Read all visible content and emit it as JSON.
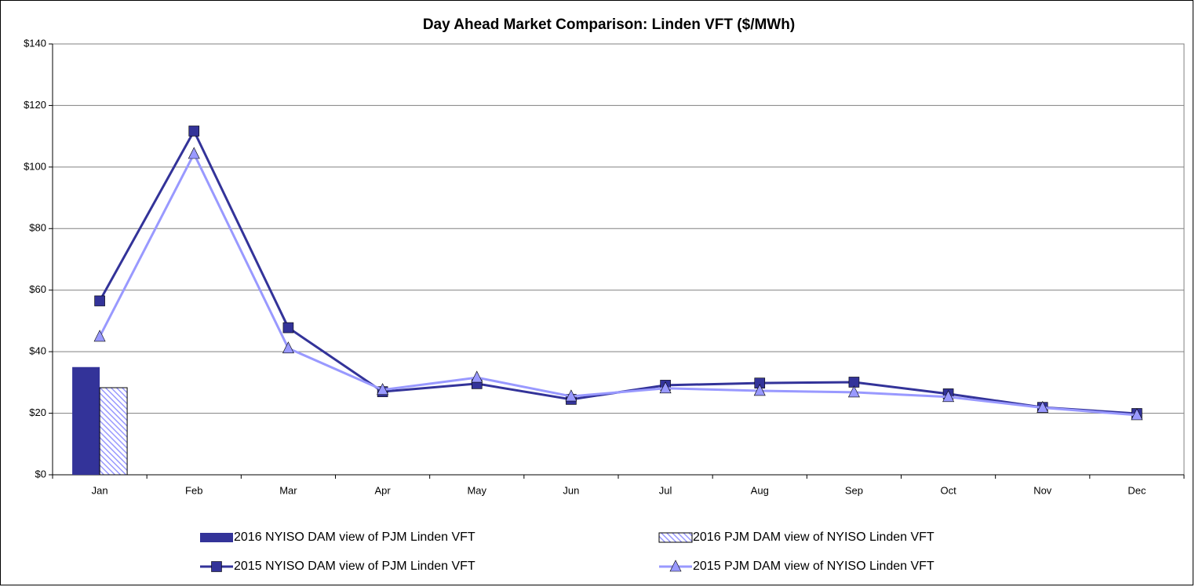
{
  "chart_data": {
    "type": "combo",
    "title": "Day Ahead Market Comparison: Linden VFT ($/MWh)",
    "categories": [
      "Jan",
      "Feb",
      "Mar",
      "Apr",
      "May",
      "Jun",
      "Jul",
      "Aug",
      "Sep",
      "Oct",
      "Nov",
      "Dec"
    ],
    "ylim": [
      0,
      140
    ],
    "yticks": [
      {
        "value": 0,
        "label": "$0"
      },
      {
        "value": 20,
        "label": "$20"
      },
      {
        "value": 40,
        "label": "$40"
      },
      {
        "value": 60,
        "label": "$60"
      },
      {
        "value": 80,
        "label": "$80"
      },
      {
        "value": 100,
        "label": "$100"
      },
      {
        "value": 120,
        "label": "$120"
      },
      {
        "value": 140,
        "label": "$140"
      }
    ],
    "grid": true,
    "series": [
      {
        "name": "2016 NYISO DAM view of PJM Linden VFT",
        "type": "bar",
        "color": "#333399",
        "hatch": false,
        "values": [
          35,
          null,
          null,
          null,
          null,
          null,
          null,
          null,
          null,
          null,
          null,
          null
        ]
      },
      {
        "name": "2016 PJM DAM view of NYISO Linden VFT",
        "type": "bar",
        "color": "#9999ff",
        "hatch": true,
        "values": [
          28.3,
          null,
          null,
          null,
          null,
          null,
          null,
          null,
          null,
          null,
          null,
          null
        ]
      },
      {
        "name": "2015 NYISO DAM view of PJM Linden VFT",
        "type": "line",
        "color": "#333399",
        "marker": "square",
        "values": [
          56.5,
          111.7,
          47.8,
          27,
          29.6,
          24.5,
          29.1,
          29.8,
          30.1,
          26.3,
          21.9,
          19.9
        ]
      },
      {
        "name": "2015 PJM DAM view of NYISO Linden VFT",
        "type": "line",
        "color": "#9999ff",
        "marker": "triangle",
        "values": [
          44.9,
          104.3,
          41.1,
          27.6,
          31.6,
          25.5,
          28.1,
          27.3,
          26.8,
          25.3,
          21.8,
          19.4
        ]
      }
    ]
  }
}
